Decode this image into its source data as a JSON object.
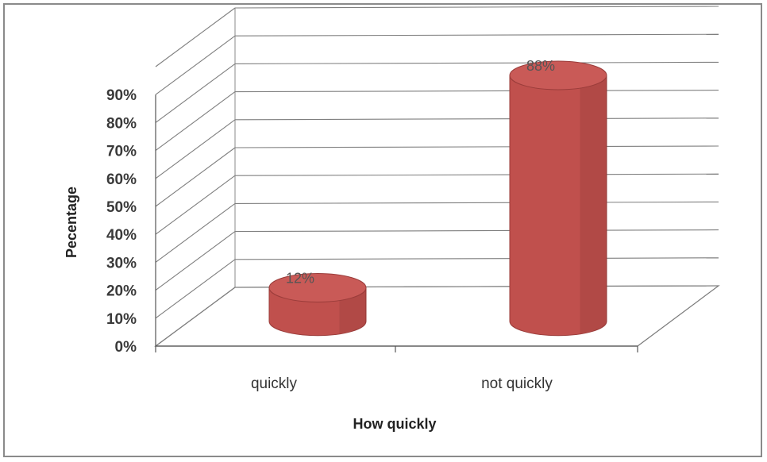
{
  "chart_data": {
    "type": "bar",
    "style": "3d-cylinder",
    "categories": [
      "quickly",
      "not quickly"
    ],
    "values": [
      12,
      88
    ],
    "data_labels": [
      "12%",
      "88%"
    ],
    "xlabel": "How quickly",
    "ylabel": "Pecentage",
    "ylim": [
      0,
      90
    ],
    "y_ticks": [
      "0%",
      "10%",
      "20%",
      "30%",
      "40%",
      "50%",
      "60%",
      "70%",
      "80%",
      "90%"
    ],
    "grid": true,
    "legend": "none",
    "bar_color": "#c0504d"
  }
}
